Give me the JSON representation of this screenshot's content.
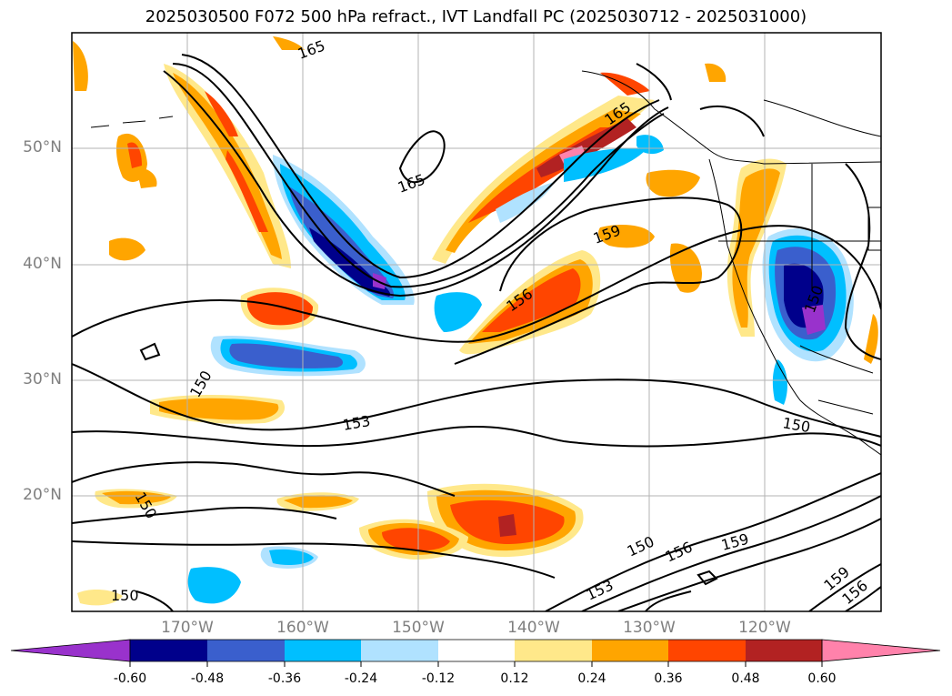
{
  "title": "2025030500 F072 500 hPa refract., IVT Landfall PC (2025030712 - 2025031000)",
  "lat_labels": [
    "50°N",
    "40°N",
    "30°N",
    "20°N"
  ],
  "lon_labels": [
    "170°W",
    "160°W",
    "150°W",
    "140°W",
    "130°W",
    "120°W"
  ],
  "colorbar": {
    "ticks": [
      "-0.60",
      "-0.48",
      "-0.36",
      "-0.24",
      "-0.12",
      "0.12",
      "0.24",
      "0.36",
      "0.48",
      "0.60"
    ],
    "colors": [
      "#9932cc",
      "#00008b",
      "#3a5fcd",
      "#00bfff",
      "#b0e2ff",
      "#ffffff",
      "#ffe88a",
      "#ffa500",
      "#ff4500",
      "#b22222",
      "#ff82ab"
    ]
  },
  "contour_labels": [
    "165",
    "165",
    "165",
    "159",
    "159",
    "156",
    "153",
    "153",
    "150",
    "150",
    "150",
    "150",
    "150",
    "150",
    "156",
    "159",
    "156",
    "153",
    "159"
  ]
}
